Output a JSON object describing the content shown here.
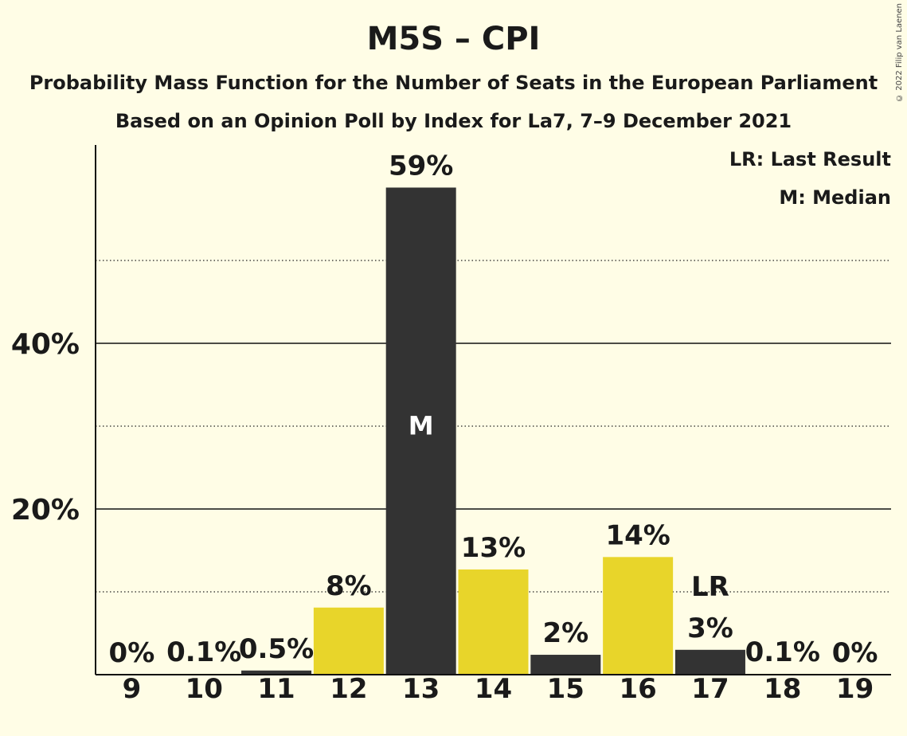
{
  "title": "M5S – CPI",
  "subtitle1": "Probability Mass Function for the Number of Seats in the European Parliament",
  "subtitle2": "Based on an Opinion Poll by Index for La7, 7–9 December 2021",
  "copyright": "© 2022 Filip van Laenen",
  "legend": {
    "last_result": "LR: Last Result",
    "median": "M: Median"
  },
  "colors": {
    "background": "#FFFDE6",
    "dark": "#333333",
    "yellow": "#E8D52A"
  },
  "chart_data": {
    "type": "bar",
    "categories": [
      "9",
      "10",
      "11",
      "12",
      "13",
      "14",
      "15",
      "16",
      "17",
      "18",
      "19"
    ],
    "values": [
      0,
      0.1,
      0.5,
      8.1,
      58.8,
      12.7,
      2.4,
      14.2,
      3.0,
      0.1,
      0
    ],
    "labels": [
      "0%",
      "0.1%",
      "0.5%",
      "8%",
      "59%",
      "13%",
      "2%",
      "14%",
      "3%",
      "0.1%",
      "0%"
    ],
    "bar_colors": [
      "dark",
      "yellow",
      "dark",
      "yellow",
      "dark",
      "yellow",
      "dark",
      "yellow",
      "dark",
      "yellow",
      "dark"
    ],
    "yticks": [
      20,
      40
    ],
    "ytick_labels": [
      "20%",
      "40%"
    ],
    "minor_gridlines": [
      10,
      30,
      50
    ],
    "ylim": [
      0,
      64
    ],
    "median_category": "13",
    "median_marker": "M",
    "last_result_category": "17",
    "last_result_marker": "LR"
  }
}
